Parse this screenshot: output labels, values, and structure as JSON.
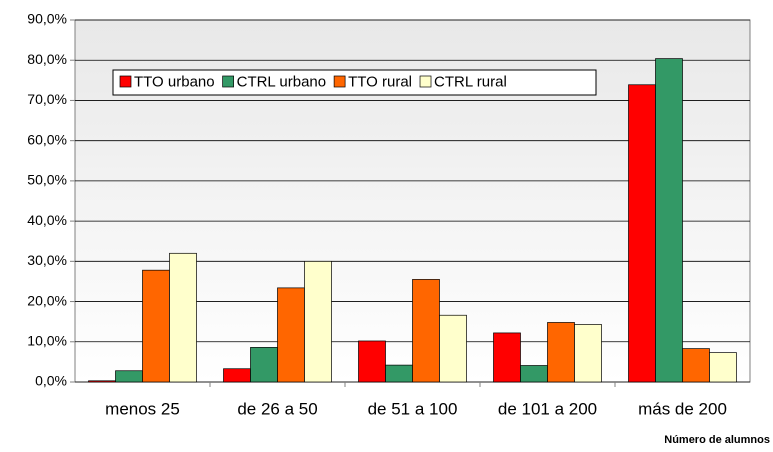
{
  "chart_data": {
    "type": "bar",
    "x_label": "Número de alumnos",
    "categories": [
      "menos 25",
      "de 26 a 50",
      "de 51 a 100",
      "de 101 a 200",
      "más de 200"
    ],
    "series": [
      {
        "name": "TTO urbano",
        "color": "#ff0000",
        "values": [
          0.3,
          3.3,
          10.2,
          12.2,
          73.9
        ]
      },
      {
        "name": "CTRL urbano",
        "color": "#339966",
        "values": [
          2.8,
          8.6,
          4.2,
          4.1,
          80.4
        ]
      },
      {
        "name": "TTO rural",
        "color": "#ff6600",
        "values": [
          27.8,
          23.4,
          25.5,
          14.8,
          8.3
        ]
      },
      {
        "name": "CTRL rural",
        "color": "#ffffcc",
        "values": [
          32.0,
          30.0,
          16.6,
          14.3,
          7.3
        ]
      }
    ],
    "ylim": [
      0,
      90
    ],
    "yticks": [
      {
        "value": 0,
        "label": "0,0%"
      },
      {
        "value": 10,
        "label": "10,0%"
      },
      {
        "value": 20,
        "label": "20,0%"
      },
      {
        "value": 30,
        "label": "30,0%"
      },
      {
        "value": 40,
        "label": "40,0%"
      },
      {
        "value": 50,
        "label": "50,0%"
      },
      {
        "value": 60,
        "label": "60,0%"
      },
      {
        "value": 70,
        "label": "70,0%"
      },
      {
        "value": 80,
        "label": "80,0%"
      },
      {
        "value": 90,
        "label": "90,0%"
      }
    ],
    "grid": true
  }
}
